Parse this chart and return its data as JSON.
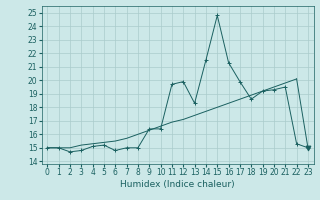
{
  "xlabel": "Humidex (Indice chaleur)",
  "xlim": [
    -0.5,
    23.5
  ],
  "ylim": [
    13.8,
    25.5
  ],
  "yticks": [
    14,
    15,
    16,
    17,
    18,
    19,
    20,
    21,
    22,
    23,
    24,
    25
  ],
  "xticks": [
    0,
    1,
    2,
    3,
    4,
    5,
    6,
    7,
    8,
    9,
    10,
    11,
    12,
    13,
    14,
    15,
    16,
    17,
    18,
    19,
    20,
    21,
    22,
    23
  ],
  "bg_color": "#cce8e8",
  "grid_color": "#aacccc",
  "line_color": "#1a6060",
  "line1_x": [
    0,
    1,
    2,
    3,
    4,
    5,
    6,
    7,
    8,
    9,
    10,
    11,
    12,
    13,
    14,
    15,
    16,
    17,
    18,
    19,
    20,
    21,
    22,
    23
  ],
  "line1_y": [
    15.0,
    15.0,
    14.7,
    14.8,
    15.1,
    15.2,
    14.8,
    15.0,
    15.0,
    16.4,
    16.4,
    19.7,
    19.9,
    18.3,
    21.5,
    24.8,
    21.3,
    19.9,
    18.6,
    19.2,
    19.3,
    19.5,
    15.3,
    15.0
  ],
  "line2_x": [
    0,
    1,
    2,
    3,
    4,
    5,
    6,
    7,
    8,
    9,
    10,
    11,
    12,
    13,
    14,
    15,
    16,
    17,
    18,
    19,
    20,
    21,
    22,
    23
  ],
  "line2_y": [
    15.0,
    15.0,
    15.0,
    15.2,
    15.3,
    15.4,
    15.5,
    15.7,
    16.0,
    16.3,
    16.6,
    16.9,
    17.1,
    17.4,
    17.7,
    18.0,
    18.3,
    18.6,
    18.9,
    19.2,
    19.5,
    19.8,
    20.1,
    15.0
  ],
  "tick_fontsize": 5.5,
  "xlabel_fontsize": 6.5
}
